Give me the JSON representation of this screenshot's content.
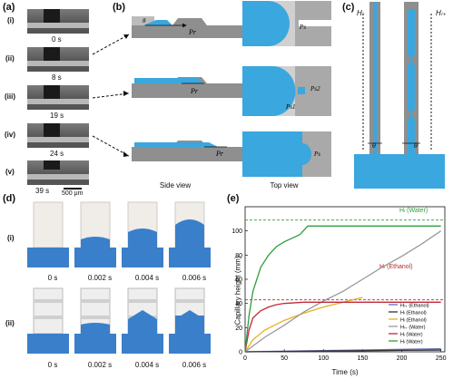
{
  "panel_a": {
    "label": "(a)",
    "rows": [
      {
        "roman": "(i)",
        "time": "0 s"
      },
      {
        "roman": "(ii)",
        "time": "8 s"
      },
      {
        "roman": "(iii)",
        "time": "19 s"
      },
      {
        "roman": "(iv)",
        "time": "24 s"
      },
      {
        "roman": "(v)",
        "time": "39 s"
      }
    ],
    "scalebar": "500 μm"
  },
  "panel_b": {
    "label": "(b)",
    "side_view": "Side view",
    "top_view": "Top view",
    "symbols": {
      "theta": "θ",
      "pr": "P",
      "pr_sub": "r",
      "ps": "P",
      "ps_sub": "s",
      "ps2": "P",
      "ps2_sub": "s2",
      "ps1": "P",
      "ps1_sub": "s1",
      "ps_last": "P",
      "ps_last_sub": "s"
    }
  },
  "panel_c": {
    "label": "(c)",
    "left_label": "Hₗ",
    "right_label": "Hₗ₊",
    "theta": "θ"
  },
  "panel_d": {
    "label": "(d)",
    "row_i": "(i)",
    "row_ii": "(ii)",
    "times_i": [
      "0 s",
      "0.002 s",
      "0.004 s",
      "0.006 s"
    ],
    "times_ii": [
      "0 s",
      "0.002 s",
      "0.004 s",
      "0.006 s"
    ]
  },
  "panel_e": {
    "label": "(e)",
    "annot_water": "Hₗ (Water)",
    "annot_ethanol": "Hₗ (Ethanol)"
  },
  "colors": {
    "water": "#3aa7de",
    "ethanol_line": "#b03030",
    "water_line": "#2e9e3e"
  },
  "chart_data": {
    "type": "line",
    "xlabel": "Time (s)",
    "ylabel": "Capillary height (mm)",
    "xlim": [
      0,
      255
    ],
    "ylim": [
      0,
      120
    ],
    "xticks": [
      0,
      50,
      100,
      150,
      200,
      250
    ],
    "yticks": [
      0,
      20,
      40,
      60,
      80,
      100
    ],
    "legend_position": "bottom-right",
    "hlines": [
      {
        "name": "Hₗ (Water)",
        "y": 109,
        "color": "#2e9e3e"
      },
      {
        "name": "Hₗ (Ethanol)",
        "y": 43,
        "color": "#b03030"
      }
    ],
    "series": [
      {
        "name": "Hₗ₊ (Ethanol)",
        "color": "#6a6fb3",
        "x": [
          0,
          50,
          100,
          150,
          200,
          250
        ],
        "y": [
          0,
          0.5,
          1,
          1.5,
          2,
          2.5
        ]
      },
      {
        "name": "Hₗ (Ethanol)",
        "color": "#333333",
        "x": [
          0,
          50,
          100,
          150,
          200,
          250
        ],
        "y": [
          0,
          0.3,
          0.6,
          0.9,
          1.2,
          1.4
        ]
      },
      {
        "name": "Hₗ (Ethanol)",
        "color": "#e6b020",
        "x": [
          0,
          10,
          25,
          50,
          75,
          100,
          125,
          150
        ],
        "y": [
          0,
          10,
          18,
          26,
          32,
          37,
          41,
          45
        ]
      },
      {
        "name": "Hₗ₊ (Water)",
        "color": "#999999",
        "x": [
          0,
          25,
          50,
          75,
          100,
          125,
          150,
          175,
          200,
          225,
          250
        ],
        "y": [
          0,
          12,
          22,
          33,
          42,
          50,
          60,
          70,
          79,
          89,
          100
        ]
      },
      {
        "name": "Hₗ (Water)",
        "color": "#c0283a",
        "x": [
          0,
          5,
          10,
          20,
          30,
          40,
          50,
          75,
          100,
          150,
          200,
          250
        ],
        "y": [
          0,
          18,
          28,
          34,
          37,
          39,
          40,
          41,
          41,
          41,
          41,
          41
        ]
      },
      {
        "name": "Hₗ (Water)",
        "color": "#2e9e3e",
        "x": [
          0,
          5,
          10,
          20,
          30,
          40,
          50,
          60,
          70,
          80,
          100,
          150,
          200,
          250
        ],
        "y": [
          0,
          30,
          50,
          70,
          80,
          87,
          91,
          94,
          97,
          104,
          104,
          104,
          104,
          104
        ]
      }
    ]
  }
}
